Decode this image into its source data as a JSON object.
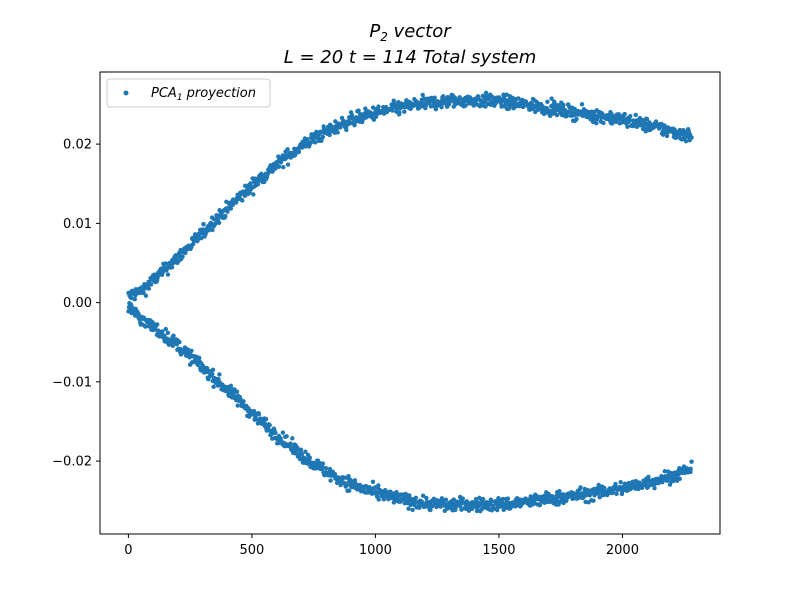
{
  "chart_data": {
    "type": "scatter",
    "title_line1_main": "P",
    "title_line1_sub": "2",
    "title_line1_rest": " vector",
    "title_line2": "L = 20 t = 114 Total system",
    "xlabel": "",
    "ylabel": "",
    "xlim": [
      -115,
      2395
    ],
    "ylim": [
      -0.0292,
      0.0291
    ],
    "x_ticks": [
      0,
      500,
      1000,
      1500,
      2000
    ],
    "x_tick_labels": [
      "0",
      "500",
      "1000",
      "1500",
      "2000"
    ],
    "y_ticks": [
      -0.02,
      -0.01,
      0.0,
      0.01,
      0.02
    ],
    "y_tick_labels": [
      "−0.02",
      "−0.01",
      "0.00",
      "0.01",
      "0.02"
    ],
    "grid": false,
    "legend_position": "top-left",
    "series": [
      {
        "name_main": "PCA",
        "name_sub": "1",
        "name_rest": " proyection",
        "color": "#1f77b4",
        "branches": [
          {
            "label": "upper",
            "x": [
              0,
              50,
              100,
              150,
              200,
              250,
              300,
              350,
              400,
              450,
              500,
              550,
              600,
              650,
              700,
              750,
              800,
              850,
              900,
              950,
              1000,
              1050,
              1100,
              1150,
              1200,
              1250,
              1300,
              1350,
              1400,
              1450,
              1500,
              1550,
              1600,
              1650,
              1700,
              1750,
              1800,
              1850,
              1900,
              1950,
              2000,
              2050,
              2100,
              2150,
              2200,
              2250,
              2280
            ],
            "y": [
              0.0008,
              0.0014,
              0.0028,
              0.0042,
              0.0057,
              0.0072,
              0.0088,
              0.0104,
              0.0118,
              0.0133,
              0.0147,
              0.0161,
              0.0174,
              0.0186,
              0.0197,
              0.0207,
              0.0215,
              0.0223,
              0.023,
              0.0235,
              0.0239,
              0.0243,
              0.0246,
              0.0249,
              0.0251,
              0.0253,
              0.0254,
              0.0255,
              0.0255,
              0.0255,
              0.0254,
              0.0252,
              0.025,
              0.0248,
              0.0246,
              0.0243,
              0.024,
              0.0238,
              0.0236,
              0.0234,
              0.0231,
              0.0228,
              0.0224,
              0.022,
              0.0216,
              0.0212,
              0.021
            ]
          },
          {
            "label": "lower",
            "x": [
              0,
              50,
              100,
              150,
              200,
              250,
              300,
              350,
              400,
              450,
              500,
              550,
              600,
              650,
              700,
              750,
              800,
              850,
              900,
              950,
              1000,
              1050,
              1100,
              1150,
              1200,
              1250,
              1300,
              1350,
              1400,
              1450,
              1500,
              1550,
              1600,
              1650,
              1700,
              1750,
              1800,
              1850,
              1900,
              1950,
              2000,
              2050,
              2100,
              2150,
              2200,
              2250,
              2280
            ],
            "y": [
              -0.0005,
              -0.002,
              -0.0031,
              -0.0042,
              -0.0054,
              -0.0068,
              -0.0082,
              -0.0096,
              -0.011,
              -0.0124,
              -0.0139,
              -0.0153,
              -0.0167,
              -0.018,
              -0.0192,
              -0.0203,
              -0.0213,
              -0.0222,
              -0.0229,
              -0.0235,
              -0.024,
              -0.0244,
              -0.0248,
              -0.0251,
              -0.0253,
              -0.0254,
              -0.0255,
              -0.0255,
              -0.0255,
              -0.0255,
              -0.0255,
              -0.0254,
              -0.0252,
              -0.025,
              -0.0248,
              -0.0246,
              -0.0244,
              -0.0242,
              -0.024,
              -0.0237,
              -0.0234,
              -0.0231,
              -0.0227,
              -0.0223,
              -0.0219,
              -0.0213,
              -0.021
            ]
          }
        ]
      }
    ]
  }
}
